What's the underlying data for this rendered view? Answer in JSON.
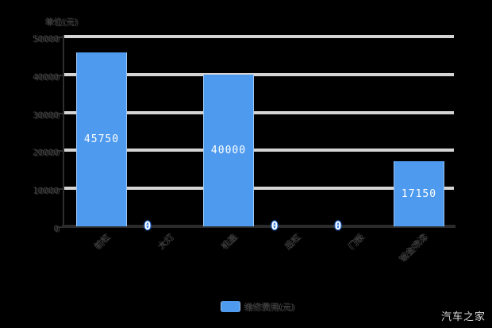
{
  "watermark": "汽车之家",
  "legend": {
    "label": "维修费用(元)"
  },
  "colors": {
    "background": "#000000",
    "bar": "#4D9AEF",
    "bar_edge": "#9fc6f2",
    "gridline": "#d4d4d4",
    "axis": "#2b2b2b",
    "dim_text": "#414141",
    "value_text": "#ffffff",
    "zero_badge_outline": "#2F7BE8",
    "watermark_text": "#d8d8d8"
  },
  "chart_data": {
    "type": "bar",
    "unit_label": "单位(元)",
    "categories": [
      "前杠",
      "大灯",
      "机盖",
      "后杠",
      "门板",
      "钣金喷漆"
    ],
    "series": [
      {
        "name": "维修费用(元)",
        "values": [
          45750,
          0,
          40000,
          0,
          0,
          17150
        ]
      }
    ],
    "value_labels": [
      "45750",
      "0",
      "40000",
      "0",
      "0",
      "17150"
    ],
    "yticks": [
      0,
      10000,
      20000,
      30000,
      40000,
      50000
    ],
    "ylim": [
      0,
      50000
    ],
    "grid": true,
    "legend_position": "bottom",
    "annotations": "zero values shown as blue-outlined 0 badges on the x-axis"
  }
}
